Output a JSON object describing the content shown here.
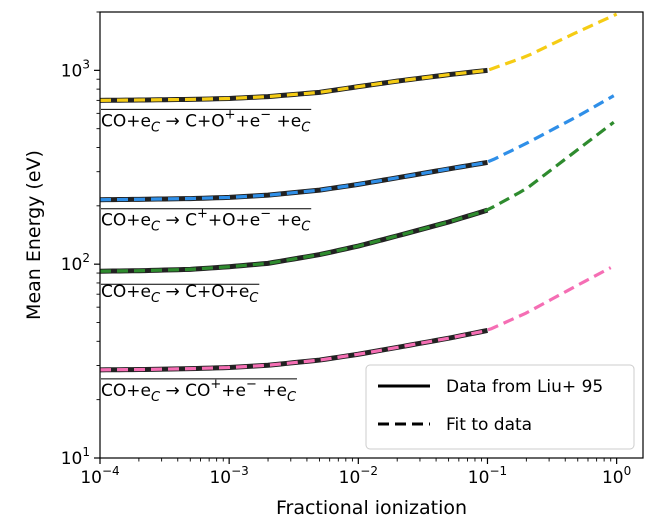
{
  "chart_data": {
    "type": "line",
    "xlabel": "Fractional ionization",
    "ylabel": "Mean Energy (eV)",
    "xscale": "log",
    "yscale": "log",
    "xlim": [
      0.0001,
      1.6
    ],
    "ylim": [
      10,
      2000
    ],
    "grid": false,
    "legend_position": "bottom-right",
    "xticks": [
      {
        "value": 0.0001,
        "base": "10",
        "exp": "−4"
      },
      {
        "value": 0.001,
        "base": "10",
        "exp": "−3"
      },
      {
        "value": 0.01,
        "base": "10",
        "exp": "−2"
      },
      {
        "value": 0.1,
        "base": "10",
        "exp": "−1"
      },
      {
        "value": 1,
        "base": "10",
        "exp": "0"
      }
    ],
    "yticks": [
      {
        "value": 10,
        "base": "10",
        "exp": "1"
      },
      {
        "value": 100,
        "base": "10",
        "exp": "2"
      },
      {
        "value": 1000,
        "base": "10",
        "exp": "3"
      }
    ],
    "legend": [
      {
        "label": "Data from Liu+ 95",
        "style": "solid",
        "color": "#000000"
      },
      {
        "label": "Fit to data",
        "style": "dashed",
        "color": "#000000"
      }
    ],
    "data_style": {
      "color": "#222222",
      "width": 5,
      "x_range": [
        0.0001,
        0.1
      ]
    },
    "series": [
      {
        "name": "",
        "label_parts": [
          "CO+e",
          "C",
          " → C+O",
          "+",
          "+e",
          "−",
          " +e",
          "C"
        ],
        "color": "#f5cc14",
        "x": [
          0.0001,
          0.0002,
          0.0005,
          0.001,
          0.002,
          0.005,
          0.01,
          0.02,
          0.05,
          0.1,
          0.2,
          0.5,
          1.0
        ],
        "y": [
          700,
          703,
          708,
          716,
          732,
          770,
          824,
          880,
          950,
          1000,
          1180,
          1580,
          1950
        ]
      },
      {
        "name": "",
        "label_parts": [
          "CO+e",
          "C",
          " → C",
          "+",
          "+O+e",
          "−",
          " +e",
          "C"
        ],
        "color": "#2f8fe8",
        "x": [
          0.0001,
          0.0002,
          0.0005,
          0.001,
          0.002,
          0.005,
          0.01,
          0.02,
          0.05,
          0.1,
          0.2,
          0.5,
          0.95
        ],
        "y": [
          215,
          216,
          218,
          221,
          227,
          241,
          258,
          279,
          310,
          335,
          420,
          580,
          740
        ]
      },
      {
        "name": "",
        "label_parts": [
          "CO+e",
          "C",
          " → C+O+e",
          "C"
        ],
        "color": "#2e8b2e",
        "x": [
          0.0001,
          0.0002,
          0.0005,
          0.001,
          0.002,
          0.005,
          0.01,
          0.02,
          0.05,
          0.1,
          0.2,
          0.5,
          0.95
        ],
        "y": [
          92,
          92.5,
          94,
          97,
          101,
          112,
          124,
          140,
          165,
          190,
          245,
          390,
          540
        ]
      },
      {
        "name": "",
        "label_parts": [
          "CO+e",
          "C",
          " → CO",
          "+",
          "+e",
          "−",
          " +e",
          "C"
        ],
        "color": "#f56eb4",
        "x": [
          0.0001,
          0.0002,
          0.0005,
          0.001,
          0.002,
          0.005,
          0.01,
          0.02,
          0.05,
          0.1,
          0.2,
          0.5,
          0.9
        ],
        "y": [
          28.5,
          28.6,
          28.9,
          29.3,
          30.1,
          32.0,
          34.3,
          37.2,
          41.5,
          45.5,
          56,
          78,
          96
        ]
      }
    ]
  }
}
